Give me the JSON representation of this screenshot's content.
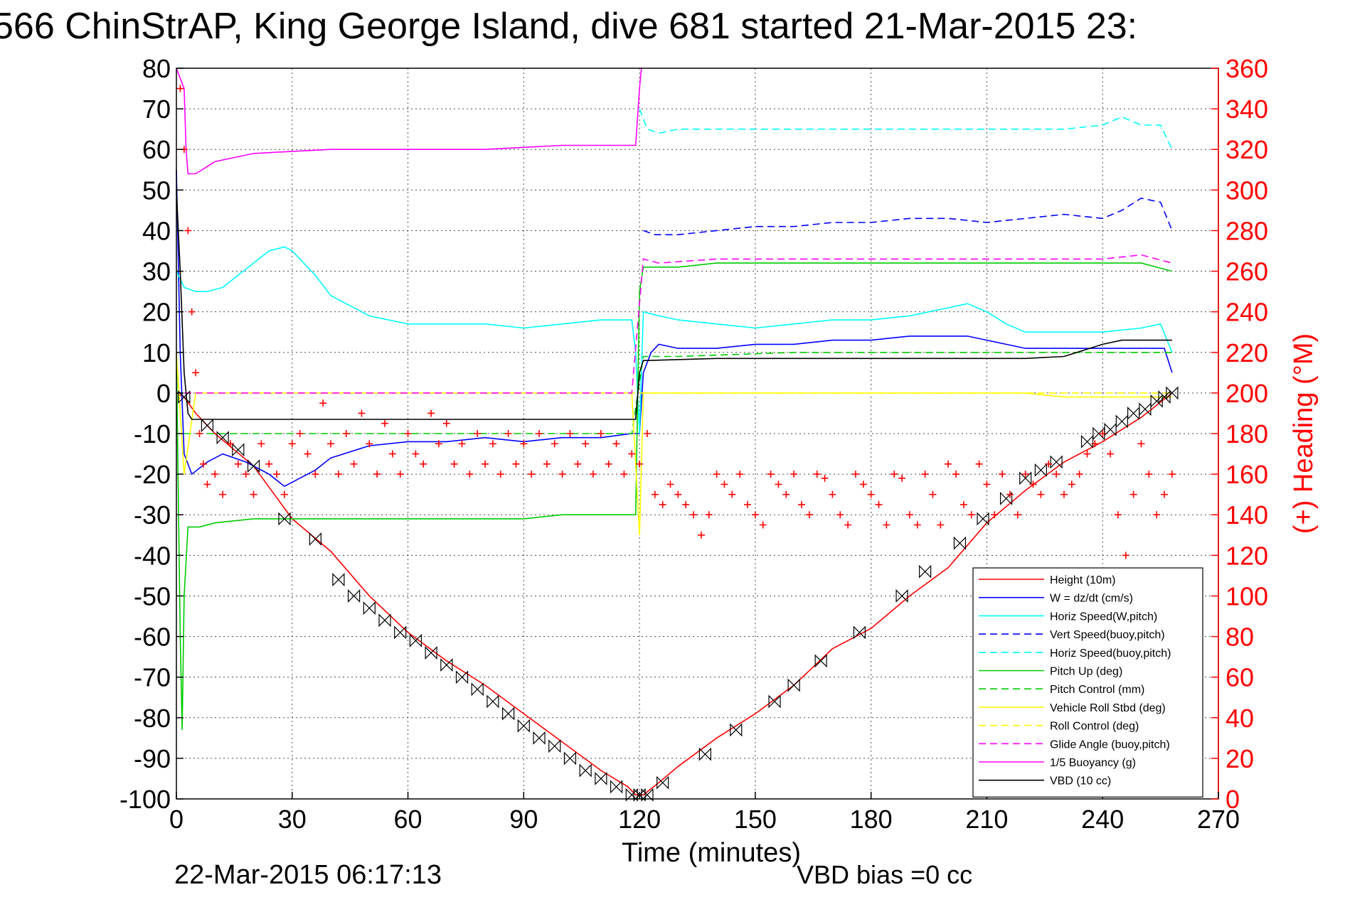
{
  "chart_data": {
    "type": "line",
    "title": "566 ChinStrAP, King George Island, dive 681 started 21-Mar-2015 23:",
    "xlabel": "Time (minutes)",
    "ylabel_right": "(+) Heading (°M)",
    "footer_date": "22-Mar-2015 06:17:13",
    "footer_vbd": "VBD bias =0 cc",
    "xlim": [
      0,
      270
    ],
    "ylim": [
      -100,
      80
    ],
    "ylim_right": [
      0,
      360
    ],
    "x_ticks": [
      0,
      30,
      60,
      90,
      120,
      150,
      180,
      210,
      240,
      270
    ],
    "y_ticks": [
      80,
      70,
      60,
      50,
      40,
      30,
      20,
      10,
      0,
      -10,
      -20,
      -30,
      -40,
      -50,
      -60,
      -70,
      -80,
      -90,
      -100
    ],
    "y_right_ticks": [
      360,
      340,
      320,
      300,
      280,
      260,
      240,
      220,
      200,
      180,
      160,
      140,
      120,
      100,
      80,
      60,
      40,
      20,
      0
    ],
    "grid": true,
    "legend_position": "bottom-right",
    "colors": {
      "red": "#ff0000",
      "blue": "#0000ff",
      "cyan": "#00ffff",
      "green": "#00cc00",
      "yellow": "#ffff00",
      "magenta": "#ff00ff",
      "black": "#000000"
    },
    "series": [
      {
        "name": "Height (10m)",
        "color": "#ff0000",
        "dash": "solid",
        "x": [
          0,
          2,
          5,
          10,
          20,
          30,
          40,
          50,
          60,
          70,
          80,
          90,
          100,
          110,
          117,
          119,
          121,
          125,
          130,
          140,
          150,
          160,
          170,
          180,
          190,
          200,
          210,
          220,
          230,
          240,
          250,
          258
        ],
        "values": [
          0,
          -1,
          -5,
          -10,
          -18,
          -31,
          -39,
          -50,
          -59,
          -66,
          -72,
          -79,
          -86,
          -93,
          -97,
          -99,
          -99,
          -96,
          -92,
          -85,
          -79,
          -72,
          -63,
          -58,
          -50,
          -43,
          -32,
          -24,
          -17,
          -12,
          -6,
          0
        ]
      },
      {
        "name": "W = dz/dt (cm/s)",
        "color": "#0000ff",
        "dash": "solid",
        "x": [
          0,
          1,
          2,
          4,
          8,
          12,
          18,
          24,
          28,
          32,
          36,
          40,
          50,
          60,
          70,
          80,
          90,
          100,
          110,
          118,
          120,
          121,
          123,
          125,
          130,
          140,
          150,
          160,
          170,
          180,
          190,
          200,
          205,
          210,
          215,
          220,
          230,
          240,
          250,
          256,
          258
        ],
        "values": [
          55,
          10,
          -15,
          -20,
          -17,
          -15,
          -17,
          -20,
          -23,
          -21,
          -19,
          -16,
          -13,
          -12,
          -12,
          -11,
          -12,
          -11,
          -11,
          -10,
          -10,
          5,
          10,
          12,
          11,
          11,
          12,
          12,
          13,
          13,
          14,
          14,
          14,
          13,
          12,
          11,
          11,
          11,
          11,
          11,
          5
        ]
      },
      {
        "name": "Horiz Speed(W,pitch)",
        "color": "#00ffff",
        "dash": "solid",
        "x": [
          0,
          2,
          5,
          8,
          12,
          16,
          20,
          24,
          28,
          30,
          32,
          36,
          40,
          50,
          60,
          70,
          80,
          90,
          100,
          110,
          118,
          119,
          120,
          121,
          125,
          130,
          140,
          150,
          160,
          170,
          180,
          190,
          200,
          205,
          210,
          215,
          220,
          230,
          240,
          250,
          255,
          258
        ],
        "values": [
          30,
          26,
          25,
          25,
          26,
          29,
          32,
          35,
          36,
          35,
          33,
          29,
          24,
          19,
          17,
          17,
          17,
          16,
          17,
          18,
          18,
          10,
          -10,
          20,
          19,
          18,
          17,
          16,
          17,
          18,
          18,
          19,
          21,
          22,
          20,
          17,
          15,
          15,
          15,
          16,
          17,
          10
        ]
      },
      {
        "name": "Vert Speed(buoy,pitch)",
        "color": "#0000ff",
        "dash": "dashed",
        "x": [
          121,
          124,
          130,
          140,
          150,
          160,
          170,
          180,
          190,
          200,
          210,
          220,
          230,
          240,
          245,
          250,
          255,
          258
        ],
        "values": [
          40,
          39,
          39,
          40,
          41,
          41,
          42,
          42,
          43,
          43,
          42,
          43,
          44,
          43,
          45,
          48,
          47,
          40
        ]
      },
      {
        "name": "Horiz Speed(buoy,pitch)",
        "color": "#00ffff",
        "dash": "dashed",
        "x": [
          120,
          122,
          125,
          130,
          140,
          150,
          160,
          170,
          180,
          190,
          200,
          210,
          220,
          230,
          240,
          245,
          250,
          255,
          258
        ],
        "values": [
          70,
          65,
          64,
          65,
          65,
          65,
          65,
          65,
          65,
          65,
          65,
          65,
          65,
          65,
          66,
          68,
          66,
          66,
          60
        ]
      },
      {
        "name": "Pitch Up (deg)",
        "color": "#00cc00",
        "dash": "solid",
        "x": [
          0,
          1,
          1.5,
          2,
          3,
          6,
          10,
          20,
          30,
          40,
          50,
          60,
          70,
          80,
          90,
          100,
          110,
          118,
          119,
          120,
          121,
          125,
          130,
          140,
          150,
          160,
          170,
          180,
          190,
          200,
          210,
          220,
          230,
          240,
          250,
          258
        ],
        "values": [
          10,
          -60,
          -83,
          -50,
          -33,
          -33,
          -32,
          -31,
          -31,
          -31,
          -31,
          -31,
          -31,
          -31,
          -31,
          -30,
          -30,
          -30,
          -30,
          25,
          31,
          31,
          31,
          32,
          32,
          32,
          32,
          32,
          32,
          32,
          32,
          32,
          32,
          32,
          32,
          30
        ]
      },
      {
        "name": "Pitch Control (mm)",
        "color": "#00cc00",
        "dash": "dashed",
        "x": [
          2,
          10,
          20,
          40,
          60,
          80,
          100,
          118,
          121,
          130,
          160,
          190,
          220,
          240,
          258
        ],
        "values": [
          -10,
          -10,
          -10,
          -10,
          -10,
          -10,
          -10,
          -10,
          9,
          9,
          10,
          10,
          10,
          10,
          10
        ]
      },
      {
        "name": "Vehicle Roll Stbd (deg)",
        "color": "#ffff00",
        "dash": "solid",
        "x": [
          0,
          2,
          5,
          10,
          20,
          40,
          60,
          80,
          100,
          118,
          120,
          121,
          140,
          160,
          180,
          200,
          220,
          230,
          240,
          250,
          258
        ],
        "values": [
          10,
          -20,
          0,
          0,
          0,
          0,
          0,
          0,
          0,
          0,
          -35,
          0,
          0,
          0,
          0,
          0,
          0,
          -1,
          -1,
          -1,
          -1
        ]
      },
      {
        "name": "Roll Control (deg)",
        "color": "#ffff00",
        "dash": "dashed",
        "x": [
          2,
          118,
          121,
          258
        ],
        "values": [
          0,
          0,
          0,
          0
        ]
      },
      {
        "name": "Glide Angle (buoy,pitch)",
        "color": "#ff00ff",
        "dash": "dashed",
        "x": [
          2,
          118,
          121,
          125,
          140,
          160,
          180,
          200,
          220,
          240,
          250,
          258
        ],
        "values": [
          0,
          0,
          33,
          32,
          33,
          33,
          33,
          33,
          33,
          33,
          34,
          32
        ]
      },
      {
        "name": "1/5 Buoyancy (g)",
        "color": "#ff00ff",
        "dash": "solid",
        "x": [
          0,
          2,
          2.5,
          3,
          5,
          10,
          20,
          40,
          60,
          80,
          100,
          118,
          119,
          120,
          120.5
        ],
        "values": [
          80,
          75,
          60,
          54,
          54,
          57,
          59,
          60,
          60,
          60,
          61,
          61,
          61,
          75,
          80
        ]
      },
      {
        "name": "VBD (10 cc)",
        "color": "#000000",
        "dash": "solid",
        "x": [
          0,
          1,
          2,
          3,
          4,
          10,
          40,
          80,
          118,
          119,
          120,
          121,
          122,
          140,
          180,
          220,
          230,
          240,
          245,
          250,
          258
        ],
        "values": [
          50,
          30,
          5,
          -5,
          -6.5,
          -6.5,
          -6.5,
          -6.5,
          -6.5,
          -6.5,
          5,
          8,
          8,
          8.5,
          8.5,
          8.5,
          9,
          12,
          13,
          13,
          13
        ]
      }
    ],
    "heading_series": {
      "axis": "right",
      "marker": "+",
      "color": "#ff0000",
      "x": [
        1,
        2,
        3,
        4,
        5,
        6,
        7,
        8,
        10,
        12,
        14,
        16,
        18,
        20,
        22,
        24,
        26,
        28,
        30,
        32,
        34,
        36,
        38,
        40,
        42,
        44,
        46,
        48,
        50,
        52,
        54,
        56,
        58,
        60,
        62,
        64,
        66,
        68,
        70,
        72,
        74,
        76,
        78,
        80,
        82,
        84,
        86,
        88,
        90,
        92,
        94,
        96,
        98,
        100,
        102,
        104,
        106,
        108,
        110,
        112,
        114,
        116,
        118,
        120,
        122,
        124,
        126,
        128,
        130,
        132,
        134,
        136,
        138,
        140,
        142,
        144,
        146,
        148,
        150,
        152,
        154,
        156,
        158,
        160,
        162,
        164,
        166,
        168,
        170,
        172,
        174,
        176,
        178,
        180,
        182,
        184,
        186,
        188,
        190,
        192,
        194,
        196,
        198,
        200,
        202,
        204,
        206,
        208,
        210,
        212,
        214,
        216,
        218,
        220,
        222,
        224,
        226,
        228,
        230,
        232,
        234,
        236,
        238,
        240,
        242,
        244,
        246,
        248,
        250,
        252,
        254,
        256,
        258
      ],
      "values": [
        350,
        320,
        280,
        240,
        210,
        180,
        165,
        155,
        160,
        150,
        175,
        165,
        160,
        150,
        175,
        165,
        160,
        150,
        175,
        180,
        170,
        160,
        195,
        175,
        160,
        180,
        165,
        190,
        175,
        160,
        185,
        170,
        160,
        180,
        170,
        165,
        190,
        175,
        185,
        165,
        175,
        160,
        180,
        165,
        175,
        160,
        180,
        165,
        175,
        160,
        180,
        165,
        175,
        160,
        180,
        165,
        175,
        160,
        180,
        165,
        175,
        160,
        170,
        165,
        180,
        150,
        145,
        155,
        150,
        145,
        140,
        130,
        140,
        160,
        155,
        150,
        160,
        145,
        140,
        135,
        160,
        155,
        150,
        160,
        145,
        140,
        160,
        158,
        150,
        140,
        135,
        160,
        155,
        150,
        145,
        135,
        160,
        158,
        140,
        135,
        160,
        150,
        135,
        165,
        160,
        145,
        140,
        165,
        155,
        140,
        160,
        150,
        140,
        160,
        155,
        150,
        165,
        160,
        150,
        155,
        160,
        170,
        175,
        180,
        170,
        140,
        120,
        150,
        175,
        160,
        140,
        150,
        160
      ]
    },
    "vbd_markers": {
      "marker": "bowtie",
      "color": "#000000",
      "x": [
        2,
        8,
        12,
        16,
        20,
        28,
        36,
        42,
        46,
        50,
        54,
        58,
        62,
        66,
        70,
        74,
        78,
        82,
        86,
        90,
        94,
        98,
        102,
        106,
        110,
        114,
        118,
        120,
        122,
        126,
        137,
        145,
        155,
        160,
        167,
        177,
        188,
        194,
        203,
        209,
        215,
        220,
        224,
        228,
        236,
        239,
        242,
        245,
        248,
        251,
        254,
        256,
        258
      ],
      "values": [
        -1,
        -8,
        -11,
        -14,
        -18,
        -31,
        -36,
        -46,
        -50,
        -53,
        -56,
        -59,
        -61,
        -64,
        -67,
        -70,
        -73,
        -76,
        -79,
        -82,
        -85,
        -87,
        -90,
        -93,
        -95,
        -97,
        -99,
        -99,
        -99,
        -96,
        -89,
        -83,
        -76,
        -72,
        -66,
        -59,
        -50,
        -44,
        -37,
        -31,
        -26,
        -21,
        -19,
        -17,
        -12,
        -10,
        -9,
        -7,
        -5,
        -4,
        -2,
        -1,
        0
      ]
    }
  }
}
